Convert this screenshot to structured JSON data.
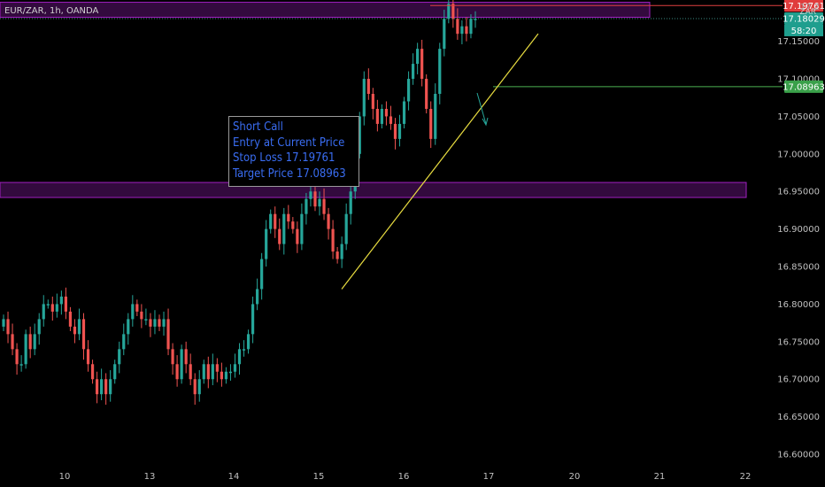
{
  "header": {
    "symbol": "EUR/ZAR, 1h, OANDA",
    "currency": "ZAR",
    "top_price_partial": "17.2"
  },
  "annotation": {
    "lines": [
      "Short Call",
      "Entry at Current Price",
      "Stop Loss 17.19761",
      "Target Price 17.08963"
    ]
  },
  "colors": {
    "background": "#000000",
    "up": "#26a69a",
    "down": "#ef5350",
    "zone": "#a020c0",
    "stop_line": "#e04040",
    "target_line": "#4caf50",
    "trendline": "#e8dc40"
  },
  "chart_data": {
    "type": "candlestick",
    "symbol": "EUR/ZAR",
    "interval": "1h",
    "ylim": [
      16.58,
      17.205
    ],
    "x_ticks": [
      "10",
      "13",
      "14",
      "15",
      "16",
      "17",
      "20",
      "21",
      "22"
    ],
    "y_ticks": [
      "16.60000",
      "16.65000",
      "16.70000",
      "16.75000",
      "16.80000",
      "16.85000",
      "16.90000",
      "16.95000",
      "17.00000",
      "17.05000",
      "17.10000",
      "17.15000"
    ],
    "price_labels": {
      "stop_loss": "17.19761",
      "current": "17.18029",
      "countdown": "58:20",
      "target": "17.08963"
    },
    "levels": {
      "stop_loss": 17.19761,
      "current": 17.18029,
      "target": 17.08963
    },
    "zones": [
      {
        "low": 17.182,
        "high": 17.202
      },
      {
        "low": 16.942,
        "high": 16.962
      }
    ],
    "trendline": {
      "from": [
        "15",
        16.82
      ],
      "to": [
        "17",
        17.16
      ]
    },
    "series": [
      {
        "values": [
          16.78,
          16.76,
          16.74,
          16.72,
          16.72,
          16.76,
          16.74,
          16.76,
          16.78,
          16.8,
          16.8,
          16.79,
          16.8,
          16.81,
          16.79,
          16.77,
          16.76,
          16.78,
          16.74,
          16.72,
          16.7,
          16.68,
          16.7,
          16.68,
          16.7,
          16.72,
          16.74,
          16.76,
          16.78,
          16.8,
          16.79,
          16.78,
          16.78,
          16.77,
          16.78,
          16.77,
          16.78,
          16.74,
          16.72,
          16.7,
          16.74,
          16.72,
          16.7,
          16.68,
          16.7,
          16.72,
          16.7,
          16.72,
          16.71,
          16.7,
          16.71,
          16.71,
          16.72,
          16.74,
          16.74,
          16.76,
          16.8,
          16.82,
          16.86,
          16.9,
          16.92,
          16.9,
          16.88,
          16.92,
          16.91,
          16.9,
          16.88,
          16.92,
          16.94,
          16.95,
          16.93,
          16.94,
          16.92,
          16.9,
          16.87,
          16.86,
          16.88,
          16.92,
          16.95,
          17.0,
          17.05,
          17.1,
          17.08,
          17.06,
          17.04,
          17.06,
          17.05,
          17.04,
          17.02,
          17.04,
          17.07,
          17.1,
          17.12,
          17.14,
          17.1,
          17.06,
          17.02,
          17.08,
          17.14,
          17.18,
          17.2,
          17.18,
          17.16,
          17.17,
          17.16,
          17.18,
          17.18
        ]
      }
    ]
  }
}
